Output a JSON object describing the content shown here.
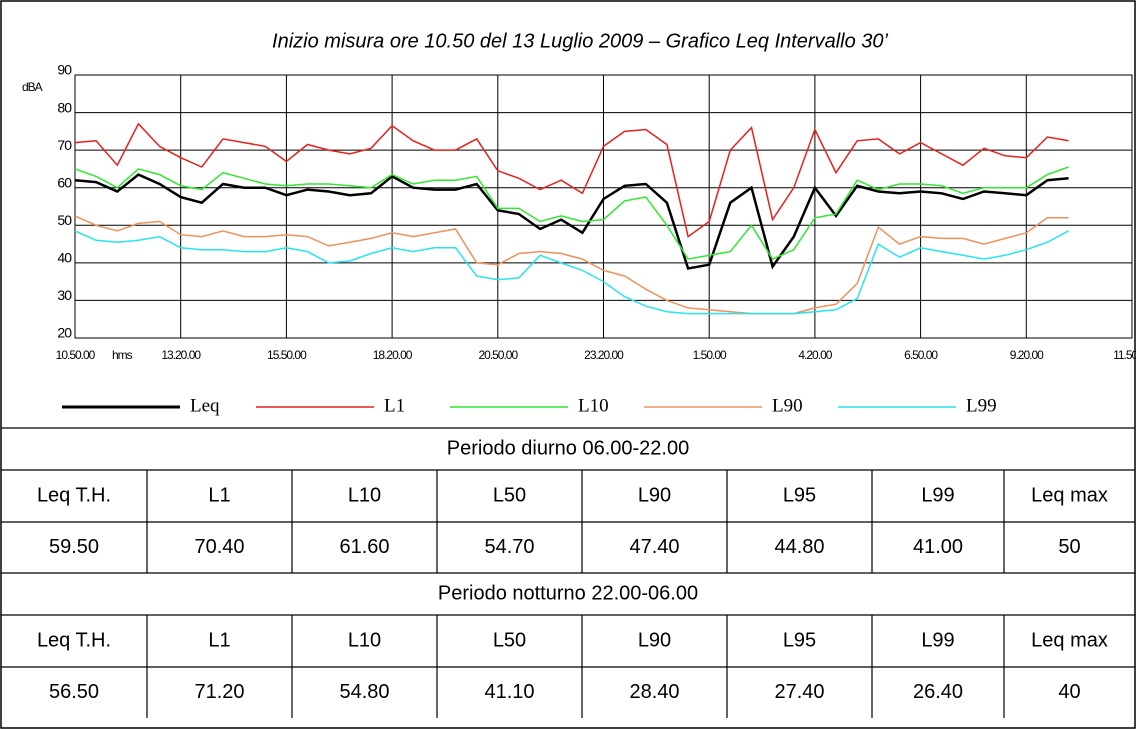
{
  "chart_data": {
    "type": "line",
    "title": "Inizio misura ore 10.50 del 13 Luglio 2009 –  Grafico Leq Intervallo 30’",
    "x_label": "hms",
    "y_label": "dBA",
    "x": [
      0,
      30,
      60,
      90,
      120,
      150,
      180,
      210,
      240,
      270,
      300,
      330,
      360,
      390,
      420,
      450,
      480,
      510,
      540,
      570,
      600,
      630,
      660,
      690,
      720,
      750,
      780,
      810,
      840,
      870,
      900,
      930,
      960,
      990,
      1020,
      1050,
      1080,
      1110,
      1140,
      1170,
      1200,
      1230,
      1260,
      1290,
      1320,
      1350,
      1380,
      1410
    ],
    "xlim": [
      0,
      1500
    ],
    "xticks": [
      {
        "value": 0,
        "label": "10.50.00"
      },
      {
        "value": 150,
        "label": "13.20.00"
      },
      {
        "value": 300,
        "label": "15.50.00"
      },
      {
        "value": 450,
        "label": "18.20.00"
      },
      {
        "value": 600,
        "label": "20.50.00"
      },
      {
        "value": 750,
        "label": "23.20.00"
      },
      {
        "value": 900,
        "label": "1.50.00"
      },
      {
        "value": 1050,
        "label": "4.20.00"
      },
      {
        "value": 1200,
        "label": "6.50.00"
      },
      {
        "value": 1350,
        "label": "9.20.00"
      },
      {
        "value": 1500,
        "label": "11.50.00"
      }
    ],
    "ylim": [
      20,
      90
    ],
    "yticks": [
      20,
      30,
      40,
      50,
      60,
      70,
      80,
      90
    ],
    "grid": true,
    "series": [
      {
        "name": "Leq",
        "color": "#000000",
        "values": [
          62,
          61.5,
          59,
          63.5,
          61,
          57.5,
          56,
          61,
          60,
          60,
          58,
          59.5,
          59,
          58,
          58.5,
          63,
          60,
          59.5,
          59.5,
          61,
          54,
          53,
          49,
          51.5,
          48,
          57,
          60.5,
          61,
          56,
          38.5,
          39.5,
          56,
          60,
          39,
          47,
          60,
          52.5,
          60.5,
          59,
          58.5,
          59,
          58.5,
          57,
          59,
          58.5,
          58,
          62,
          62.5
        ]
      },
      {
        "name": "L1",
        "color": "#e8201c",
        "values": [
          72,
          72.5,
          66,
          77,
          71,
          68,
          65.5,
          73,
          72,
          71,
          67,
          71.5,
          70,
          69,
          70.5,
          76.5,
          72.5,
          70,
          70,
          73,
          64.5,
          62.5,
          59.5,
          62,
          58.5,
          71,
          75,
          75.5,
          71.5,
          47,
          51,
          70,
          76,
          51.5,
          60,
          75.5,
          64,
          72.5,
          73,
          69,
          72,
          69,
          66,
          70.5,
          68.5,
          68,
          73.5,
          72.5
        ]
      },
      {
        "name": "L10",
        "color": "#2fe82f",
        "values": [
          65,
          63,
          60,
          65,
          63.5,
          60.5,
          59.5,
          64,
          62.5,
          61,
          60.5,
          61,
          61,
          60.5,
          60,
          63.5,
          61,
          62,
          62,
          63,
          54.5,
          54.5,
          51,
          52.5,
          51,
          51.5,
          56.5,
          57.5,
          50,
          41,
          42,
          43,
          50,
          41,
          43.5,
          52,
          53,
          62,
          59.5,
          61,
          61,
          60.5,
          58.5,
          60,
          60,
          60,
          63.5,
          65.5
        ]
      },
      {
        "name": "L90",
        "color": "#f0905a",
        "values": [
          52.5,
          50,
          48.5,
          50.5,
          51,
          47.5,
          47,
          48.5,
          47,
          47,
          47.5,
          47,
          44.5,
          45.5,
          46.5,
          48,
          47,
          48,
          49,
          40,
          39.5,
          42.5,
          43,
          42.5,
          41,
          38,
          36.5,
          33,
          30,
          28,
          27.5,
          27,
          26.5,
          26.5,
          26.5,
          28,
          29,
          34.5,
          49.5,
          45,
          47,
          46.5,
          46.5,
          45,
          46.5,
          48,
          52,
          52
        ]
      },
      {
        "name": "L99",
        "color": "#27e4ef",
        "values": [
          48.5,
          46,
          45.5,
          46,
          47,
          44,
          43.5,
          43.5,
          43,
          43,
          44,
          43,
          40,
          40.5,
          42.5,
          44,
          43,
          44,
          44,
          36.5,
          35.5,
          36,
          42,
          40,
          38,
          35,
          31,
          28.5,
          27,
          26.5,
          26.5,
          26.5,
          26.5,
          26.5,
          26.5,
          27,
          27.5,
          30.5,
          45,
          41.5,
          44,
          43,
          42,
          41,
          42,
          43.5,
          45.5,
          48.5
        ]
      }
    ]
  },
  "tables": [
    {
      "heading": "Periodo diurno 06.00-22.00",
      "header": [
        "Leq T.H.",
        "L1",
        "L10",
        "L50",
        "L90",
        "L95",
        "L99",
        "Leq max"
      ],
      "values": [
        "59.50",
        "70.40",
        "61.60",
        "54.70",
        "47.40",
        "44.80",
        "41.00",
        "50"
      ]
    },
    {
      "heading": "Periodo notturno 22.00-06.00",
      "header": [
        "Leq T.H.",
        "L1",
        "L10",
        "L50",
        "L90",
        "L95",
        "L99",
        "Leq max"
      ],
      "values": [
        "56.50",
        "71.20",
        "54.80",
        "41.10",
        "28.40",
        "27.40",
        "26.40",
        "40"
      ]
    }
  ]
}
